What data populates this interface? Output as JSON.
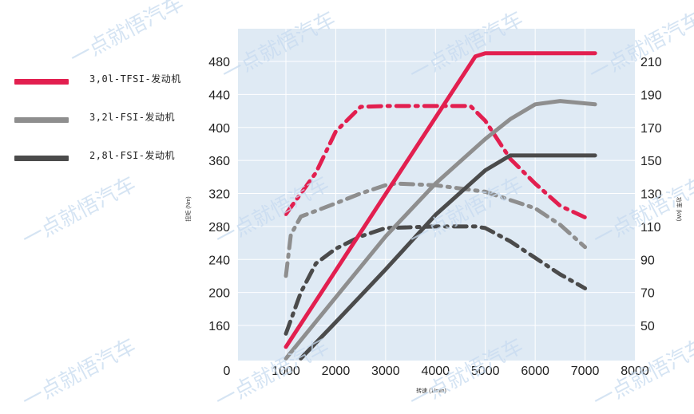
{
  "watermark_text": "一点就悟汽车",
  "chart_data": {
    "type": "line",
    "xlabel": "转速 (1/min)",
    "ylabel_left": "扭矩 (Nm)",
    "ylabel_right": "功率 (kW)",
    "xlim": [
      1000,
      8000
    ],
    "xticks": [
      "0",
      "1000",
      "2000",
      "3000",
      "4000",
      "5000",
      "6000",
      "7000",
      "8000"
    ],
    "ylim_left": [
      120,
      500
    ],
    "yticks_left": [
      "160",
      "200",
      "240",
      "280",
      "320",
      "360",
      "400",
      "440",
      "480"
    ],
    "ylim_right": [
      30,
      220
    ],
    "yticks_right": [
      "50",
      "70",
      "90",
      "110",
      "130",
      "150",
      "170",
      "190",
      "210"
    ],
    "grid": true,
    "legend_position": "left-outside",
    "series": [
      {
        "name": "3,0l-TFSI-发动机",
        "color": "#e21f4f",
        "kind": "power",
        "style": "solid",
        "x": [
          1000,
          4800,
          5000,
          7200
        ],
        "y": [
          37,
          213,
          215,
          215
        ]
      },
      {
        "name": "3,0l-TFSI-发动机",
        "color": "#e21f4f",
        "kind": "torque",
        "style": "dashdot",
        "x": [
          1000,
          1600,
          2000,
          2500,
          3000,
          4000,
          4700,
          5000,
          5500,
          6000,
          6500,
          7000
        ],
        "y": [
          295,
          345,
          395,
          425,
          426,
          426,
          426,
          408,
          362,
          332,
          305,
          291
        ]
      },
      {
        "name": "3,2l-FSI-发动机",
        "color": "#8e8e8e",
        "kind": "power",
        "style": "solid",
        "x": [
          1000,
          2000,
          3000,
          4000,
          5000,
          5500,
          6000,
          6500,
          7200
        ],
        "y": [
          30,
          67,
          104,
          136,
          163,
          175,
          184,
          186,
          184
        ]
      },
      {
        "name": "3,2l-FSI-发动机",
        "color": "#8e8e8e",
        "kind": "torque",
        "style": "dashdot",
        "x": [
          1000,
          1100,
          1300,
          2000,
          2500,
          3000,
          3200,
          4000,
          5000,
          6000,
          6500,
          7000
        ],
        "y": [
          220,
          270,
          292,
          308,
          320,
          330,
          332,
          330,
          322,
          302,
          282,
          255
        ]
      },
      {
        "name": "2,8l-FSI-发动机",
        "color": "#4b4b4b",
        "kind": "power",
        "style": "solid",
        "x": [
          1300,
          2000,
          3000,
          4000,
          5000,
          5500,
          7200
        ],
        "y": [
          30,
          52,
          84,
          117,
          144,
          153,
          153
        ]
      },
      {
        "name": "2,8l-FSI-发动机",
        "color": "#4b4b4b",
        "kind": "torque",
        "style": "dashdot",
        "x": [
          1000,
          1300,
          1600,
          2000,
          2500,
          3000,
          4000,
          4800,
          5000,
          5500,
          6000,
          6500,
          7000
        ],
        "y": [
          150,
          200,
          235,
          253,
          268,
          278,
          280,
          280,
          278,
          262,
          242,
          222,
          205
        ]
      }
    ]
  },
  "legend": {
    "items": [
      {
        "label": "3,0l-TFSI-发动机",
        "color": "#e21f4f"
      },
      {
        "label": "3,2l-FSI-发动机",
        "color": "#8e8e8e"
      },
      {
        "label": "2,8l-FSI-发动机",
        "color": "#4b4b4b"
      }
    ]
  }
}
